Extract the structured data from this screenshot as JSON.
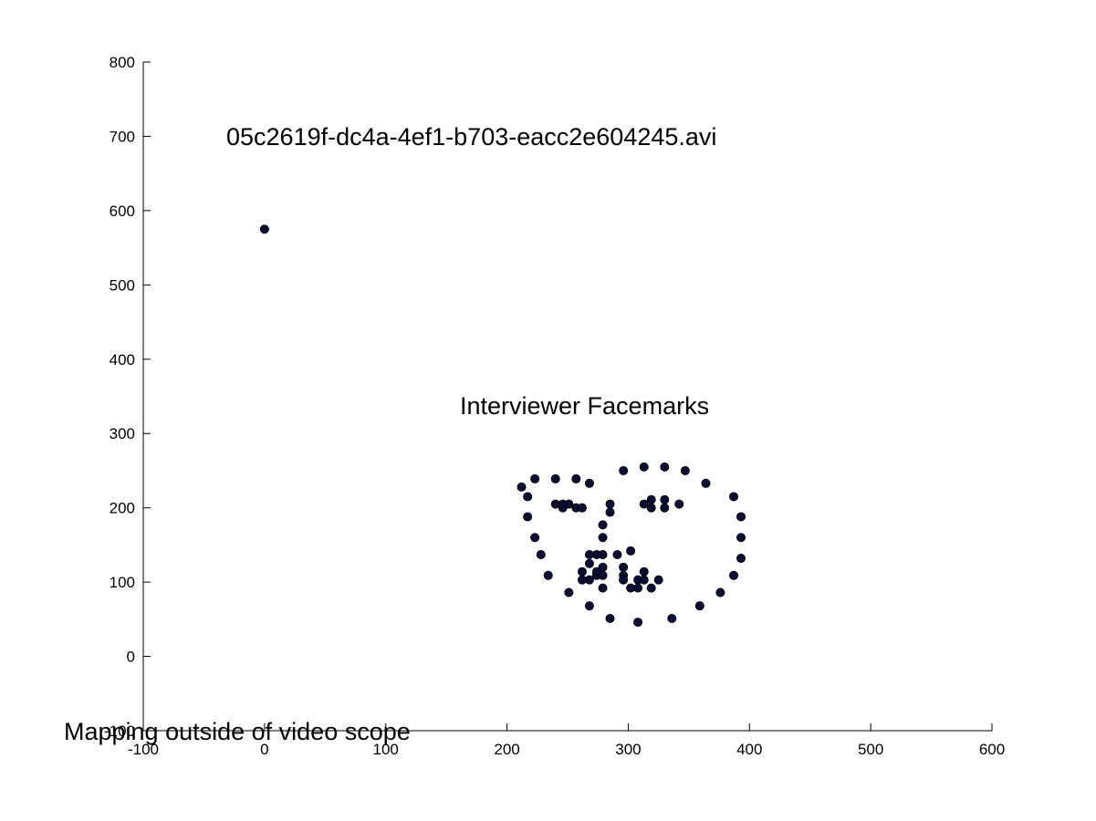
{
  "chart_data": {
    "type": "scatter",
    "annotations": {
      "filename": "05c2619f-dc4a-4ef1-b703-eacc2e604245.avi",
      "label": "Interviewer Facemarks",
      "warning": "Mapping outside of video scope"
    },
    "xlim": [
      -100,
      600
    ],
    "ylim": [
      -100,
      800
    ],
    "xticks": [
      -100,
      0,
      100,
      200,
      300,
      400,
      500,
      600
    ],
    "yticks": [
      -100,
      0,
      100,
      200,
      300,
      400,
      500,
      600,
      700,
      800
    ],
    "marker_color": "#0d0d33",
    "grid": false,
    "legend": "none",
    "points": [
      {
        "x": 0,
        "y": 575
      },
      {
        "x": 212,
        "y": 228
      },
      {
        "x": 217,
        "y": 215
      },
      {
        "x": 217,
        "y": 188
      },
      {
        "x": 223,
        "y": 160
      },
      {
        "x": 228,
        "y": 137
      },
      {
        "x": 234,
        "y": 109
      },
      {
        "x": 251,
        "y": 86
      },
      {
        "x": 268,
        "y": 68
      },
      {
        "x": 285,
        "y": 51
      },
      {
        "x": 308,
        "y": 46
      },
      {
        "x": 336,
        "y": 51
      },
      {
        "x": 359,
        "y": 68
      },
      {
        "x": 376,
        "y": 86
      },
      {
        "x": 387,
        "y": 109
      },
      {
        "x": 393,
        "y": 132
      },
      {
        "x": 393,
        "y": 160
      },
      {
        "x": 393,
        "y": 188
      },
      {
        "x": 387,
        "y": 215
      },
      {
        "x": 223,
        "y": 239
      },
      {
        "x": 240,
        "y": 239
      },
      {
        "x": 257,
        "y": 239
      },
      {
        "x": 268,
        "y": 233
      },
      {
        "x": 296,
        "y": 250
      },
      {
        "x": 313,
        "y": 255
      },
      {
        "x": 330,
        "y": 255
      },
      {
        "x": 347,
        "y": 250
      },
      {
        "x": 364,
        "y": 233
      },
      {
        "x": 285,
        "y": 205
      },
      {
        "x": 285,
        "y": 194
      },
      {
        "x": 279,
        "y": 177
      },
      {
        "x": 279,
        "y": 160
      },
      {
        "x": 268,
        "y": 137
      },
      {
        "x": 274,
        "y": 137
      },
      {
        "x": 279,
        "y": 137
      },
      {
        "x": 291,
        "y": 137
      },
      {
        "x": 302,
        "y": 142
      },
      {
        "x": 240,
        "y": 205
      },
      {
        "x": 246,
        "y": 200
      },
      {
        "x": 251,
        "y": 205
      },
      {
        "x": 257,
        "y": 200
      },
      {
        "x": 262,
        "y": 200
      },
      {
        "x": 246,
        "y": 205
      },
      {
        "x": 313,
        "y": 205
      },
      {
        "x": 319,
        "y": 200
      },
      {
        "x": 319,
        "y": 211
      },
      {
        "x": 330,
        "y": 211
      },
      {
        "x": 330,
        "y": 200
      },
      {
        "x": 342,
        "y": 205
      },
      {
        "x": 262,
        "y": 114
      },
      {
        "x": 268,
        "y": 125
      },
      {
        "x": 279,
        "y": 120
      },
      {
        "x": 296,
        "y": 120
      },
      {
        "x": 313,
        "y": 114
      },
      {
        "x": 325,
        "y": 103
      },
      {
        "x": 319,
        "y": 92
      },
      {
        "x": 308,
        "y": 92
      },
      {
        "x": 302,
        "y": 92
      },
      {
        "x": 279,
        "y": 92
      },
      {
        "x": 268,
        "y": 103
      },
      {
        "x": 262,
        "y": 103
      },
      {
        "x": 274,
        "y": 109
      },
      {
        "x": 279,
        "y": 109
      },
      {
        "x": 296,
        "y": 109
      },
      {
        "x": 308,
        "y": 103
      },
      {
        "x": 313,
        "y": 103
      },
      {
        "x": 296,
        "y": 103
      },
      {
        "x": 274,
        "y": 114
      }
    ]
  }
}
